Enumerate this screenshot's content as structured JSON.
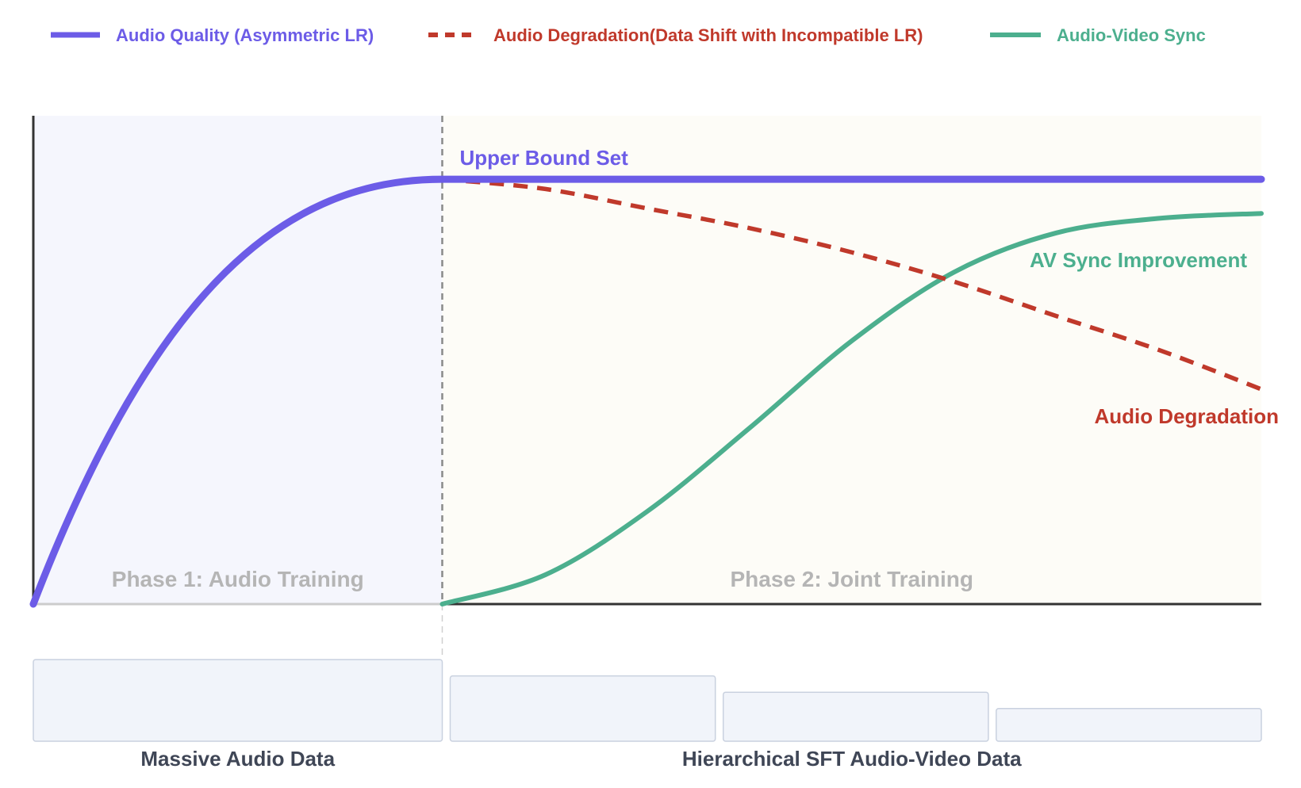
{
  "chart_data": {
    "type": "line",
    "title": "",
    "xlabel": "",
    "ylabel": "",
    "xlim": [
      0,
      1
    ],
    "ylim": [
      0,
      1
    ],
    "grid": false,
    "legend": {
      "placement": "top",
      "entries": [
        {
          "label": "Audio Quality (Asymmetric LR)",
          "color": "#6c5ce7",
          "style": "solid"
        },
        {
          "label": "Audio Degradation(Data Shift with Incompatible LR)",
          "color": "#c0392b",
          "style": "dashed"
        },
        {
          "label": "Audio-Video Sync",
          "color": "#4caf8e",
          "style": "solid"
        }
      ]
    },
    "phase_boundary_x": 0.333,
    "phases": [
      {
        "label": "Phase 1: Audio Training",
        "x_range": [
          0,
          0.333
        ],
        "fill": "#f5f6fd"
      },
      {
        "label": "Phase 2: Joint Training",
        "x_range": [
          0.333,
          1
        ],
        "fill": "#fdfcf7"
      }
    ],
    "series": [
      {
        "name": "Audio Quality (Asymmetric LR)",
        "color": "#6c5ce7",
        "style": "solid",
        "x": [
          0,
          0.042,
          0.083,
          0.125,
          0.167,
          0.208,
          0.25,
          0.292,
          0.333,
          0.5,
          0.667,
          0.833,
          1
        ],
        "y": [
          0,
          0.24,
          0.44,
          0.6,
          0.73,
          0.83,
          0.91,
          0.96,
          0.87,
          0.87,
          0.87,
          0.87,
          0.87
        ]
      },
      {
        "name": "Audio Degradation(Data Shift with Incompatible LR)",
        "color": "#c0392b",
        "style": "dashed",
        "x": [
          0.333,
          0.417,
          0.5,
          0.583,
          0.667,
          0.75,
          0.833,
          0.917,
          1
        ],
        "y": [
          0.87,
          0.85,
          0.81,
          0.77,
          0.72,
          0.66,
          0.59,
          0.52,
          0.44
        ]
      },
      {
        "name": "Audio-Video Sync",
        "color": "#4caf8e",
        "style": "solid",
        "x": [
          0.333,
          0.417,
          0.5,
          0.583,
          0.667,
          0.75,
          0.833,
          0.917,
          1
        ],
        "y": [
          0,
          0.06,
          0.19,
          0.36,
          0.54,
          0.68,
          0.76,
          0.79,
          0.8
        ]
      }
    ],
    "annotations": [
      {
        "text": "Upper Bound Set",
        "color": "#6c5ce7"
      },
      {
        "text": "AV Sync Improvement",
        "color": "#4caf8e"
      },
      {
        "text": "Audio Degradation",
        "color": "#c0392b"
      }
    ],
    "data_blocks": {
      "blocks": [
        {
          "group": "Massive Audio Data",
          "level": 1.0
        },
        {
          "group": "Hierarchical SFT Audio-Video Data",
          "level": 0.8
        },
        {
          "group": "Hierarchical SFT Audio-Video Data",
          "level": 0.6
        },
        {
          "group": "Hierarchical SFT Audio-Video Data",
          "level": 0.4
        }
      ],
      "labels": [
        "Massive Audio Data",
        "Hierarchical SFT Audio-Video Data"
      ]
    }
  }
}
